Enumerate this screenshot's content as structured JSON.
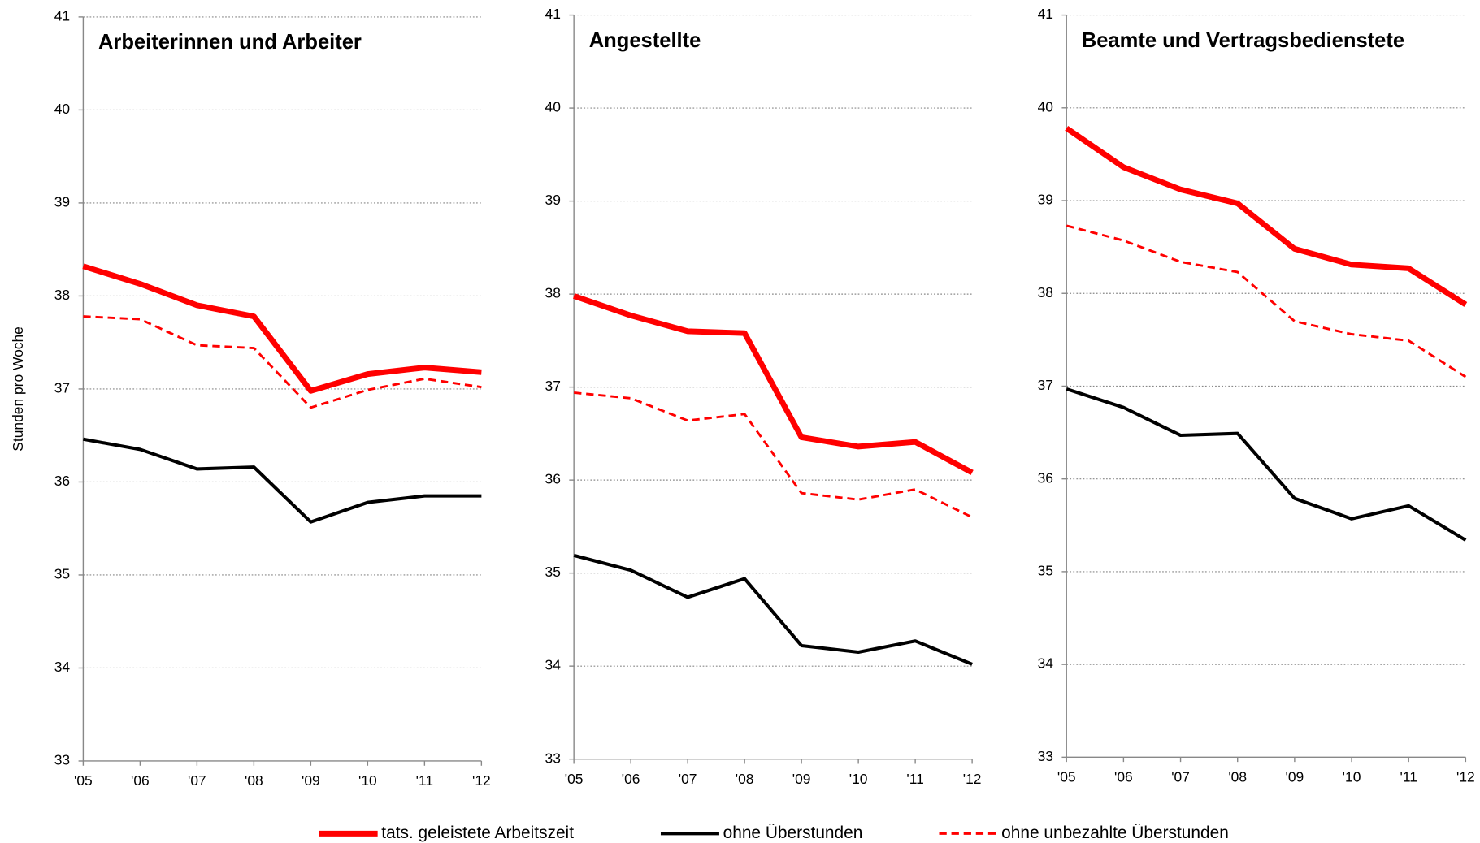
{
  "chart_data": [
    {
      "type": "line",
      "title": "Arbeiterinnen und Arbeiter",
      "ylabel": "Stunden pro Woche",
      "categories": [
        "'05",
        "'06",
        "'07",
        "'08",
        "'09",
        "'10",
        "'11",
        "'12"
      ],
      "ylim": [
        33,
        41
      ],
      "yticks": [
        33,
        34,
        35,
        36,
        37,
        38,
        39,
        40,
        41
      ],
      "grid": true,
      "legend": "bottom",
      "series": [
        {
          "name": "tats. geleistete Arbeitszeit",
          "color": "#ff0000",
          "style": "thick",
          "values": [
            38.32,
            38.13,
            37.9,
            37.78,
            36.98,
            37.16,
            37.23,
            37.18
          ]
        },
        {
          "name": "ohne Überstunden",
          "color": "#000000",
          "style": "solid",
          "values": [
            36.46,
            36.35,
            36.14,
            36.16,
            35.57,
            35.78,
            35.85,
            35.85
          ]
        },
        {
          "name": "ohne unbezahlte Überstunden",
          "color": "#ff0000",
          "style": "dashed",
          "values": [
            37.78,
            37.75,
            37.47,
            37.44,
            36.8,
            36.99,
            37.11,
            37.02
          ]
        }
      ]
    },
    {
      "type": "line",
      "title": "Angestellte",
      "categories": [
        "'05",
        "'06",
        "'07",
        "'08",
        "'09",
        "'10",
        "'11",
        "'12"
      ],
      "ylim": [
        33,
        41
      ],
      "yticks": [
        33,
        34,
        35,
        36,
        37,
        38,
        39,
        40,
        41
      ],
      "grid": true,
      "series": [
        {
          "color": "#ff0000",
          "style": "thick",
          "values": [
            37.98,
            37.77,
            37.6,
            37.58,
            36.46,
            36.36,
            36.41,
            36.08
          ]
        },
        {
          "color": "#000000",
          "style": "solid",
          "values": [
            35.19,
            35.03,
            34.74,
            34.94,
            34.22,
            34.15,
            34.27,
            34.02
          ]
        },
        {
          "color": "#ff0000",
          "style": "dashed",
          "values": [
            36.94,
            36.88,
            36.64,
            36.71,
            35.86,
            35.79,
            35.9,
            35.6
          ]
        }
      ]
    },
    {
      "type": "line",
      "title": "Beamte und Vertragsbedienstete",
      "categories": [
        "'05",
        "'06",
        "'07",
        "'08",
        "'09",
        "'10",
        "'11",
        "'12"
      ],
      "ylim": [
        33,
        41
      ],
      "yticks": [
        33,
        34,
        35,
        36,
        37,
        38,
        39,
        40,
        41
      ],
      "grid": true,
      "series": [
        {
          "color": "#ff0000",
          "style": "thick",
          "values": [
            39.78,
            39.36,
            39.12,
            38.97,
            38.48,
            38.31,
            38.27,
            37.88
          ]
        },
        {
          "color": "#000000",
          "style": "solid",
          "values": [
            36.97,
            36.77,
            36.47,
            36.49,
            35.79,
            35.57,
            35.71,
            35.34
          ]
        },
        {
          "color": "#ff0000",
          "style": "dashed",
          "values": [
            38.73,
            38.57,
            38.34,
            38.23,
            37.7,
            37.56,
            37.49,
            37.1
          ]
        }
      ]
    }
  ]
}
